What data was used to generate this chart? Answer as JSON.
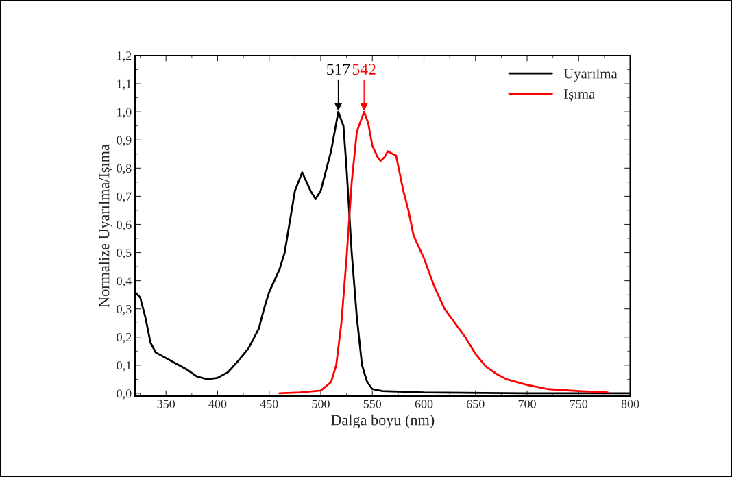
{
  "chart_data": {
    "type": "line",
    "xlabel": "Dalga boyu (nm)",
    "ylabel": "Normalize Uyarılma/Işıma",
    "xlim": [
      320,
      800
    ],
    "ylim": [
      -0.01,
      1.2
    ],
    "xticks": [
      350,
      400,
      450,
      500,
      550,
      600,
      650,
      700,
      750,
      800
    ],
    "yticks": [
      {
        "value": 0.0,
        "label": "0,0"
      },
      {
        "value": 0.1,
        "label": "0,1"
      },
      {
        "value": 0.2,
        "label": "0,2"
      },
      {
        "value": 0.3,
        "label": "0,3"
      },
      {
        "value": 0.4,
        "label": "0,4"
      },
      {
        "value": 0.5,
        "label": "0,5"
      },
      {
        "value": 0.6,
        "label": "0,6"
      },
      {
        "value": 0.7,
        "label": "0,7"
      },
      {
        "value": 0.8,
        "label": "0,8"
      },
      {
        "value": 0.9,
        "label": "0,9"
      },
      {
        "value": 1.0,
        "label": "1,0"
      },
      {
        "value": 1.1,
        "label": "1,1"
      },
      {
        "value": 1.2,
        "label": "1,2"
      }
    ],
    "grid": false,
    "legend": "top right",
    "marker": "none",
    "line_style": "solid",
    "series": [
      {
        "name": "Uyarılma",
        "color": "#000000",
        "x": [
          320,
          325,
          330,
          335,
          340,
          350,
          360,
          370,
          380,
          390,
          400,
          410,
          420,
          430,
          440,
          445,
          450,
          460,
          465,
          470,
          475,
          482,
          490,
          495,
          500,
          510,
          517,
          522,
          525,
          530,
          535,
          540,
          545,
          550,
          560,
          600,
          700,
          800
        ],
        "values": [
          0.36,
          0.34,
          0.27,
          0.18,
          0.145,
          0.125,
          0.105,
          0.085,
          0.06,
          0.05,
          0.055,
          0.075,
          0.115,
          0.16,
          0.23,
          0.3,
          0.36,
          0.44,
          0.5,
          0.61,
          0.72,
          0.785,
          0.72,
          0.69,
          0.72,
          0.86,
          1.0,
          0.95,
          0.8,
          0.5,
          0.27,
          0.1,
          0.04,
          0.015,
          0.008,
          0.003,
          0.0,
          0.0
        ]
      },
      {
        "name": "Işıma",
        "color": "#ff0000",
        "x": [
          460,
          480,
          500,
          510,
          515,
          520,
          525,
          530,
          535,
          542,
          546,
          550,
          555,
          558,
          562,
          565,
          570,
          573,
          580,
          585,
          590,
          600,
          610,
          620,
          630,
          640,
          650,
          660,
          670,
          680,
          700,
          720,
          750,
          778
        ],
        "values": [
          0.0,
          0.003,
          0.01,
          0.04,
          0.1,
          0.25,
          0.48,
          0.75,
          0.93,
          1.0,
          0.96,
          0.88,
          0.84,
          0.825,
          0.84,
          0.86,
          0.85,
          0.845,
          0.72,
          0.65,
          0.56,
          0.48,
          0.38,
          0.3,
          0.25,
          0.2,
          0.14,
          0.095,
          0.07,
          0.05,
          0.03,
          0.015,
          0.008,
          0.003
        ]
      }
    ],
    "annotations": [
      {
        "text": "517",
        "x": 517,
        "y": 1.0
      },
      {
        "text": "542",
        "x": 542,
        "y": 1.0
      }
    ]
  }
}
